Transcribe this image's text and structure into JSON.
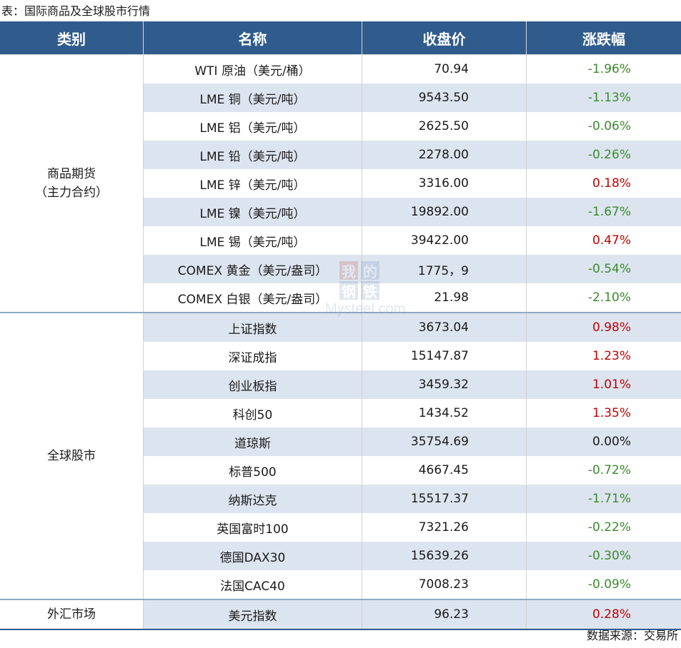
{
  "caption": "表：国际商品及全球股市行情",
  "headers": [
    "类别",
    "名称",
    "收盘价",
    "涨跌幅"
  ],
  "groups": [
    {
      "category_lines": [
        "商品期货",
        "（主力合约）"
      ],
      "rows": [
        {
          "name": "WTI 原油（美元/桶）",
          "price": "70.94",
          "change": "-1.96%",
          "dir": "down"
        },
        {
          "name": "LME 铜（美元/吨）",
          "price": "9543.50",
          "change": "-1.13%",
          "dir": "down"
        },
        {
          "name": "LME 铝（美元/吨）",
          "price": "2625.50",
          "change": "-0.06%",
          "dir": "down"
        },
        {
          "name": "LME 铅（美元/吨）",
          "price": "2278.00",
          "change": "-0.26%",
          "dir": "down"
        },
        {
          "name": "LME 锌（美元/吨）",
          "price": "3316.00",
          "change": "0.18%",
          "dir": "up"
        },
        {
          "name": "LME 镍（美元/吨）",
          "price": "19892.00",
          "change": "-1.67%",
          "dir": "down"
        },
        {
          "name": "LME 锡（美元/吨）",
          "price": "39422.00",
          "change": "0.47%",
          "dir": "up"
        },
        {
          "name": "COMEX 黄金（美元/盎司）",
          "price": "1775，9",
          "change": "-0.54%",
          "dir": "down"
        },
        {
          "name": "COMEX 白银（美元/盎司）",
          "price": "21.98",
          "change": "-2.10%",
          "dir": "down"
        }
      ]
    },
    {
      "category_lines": [
        "全球股市"
      ],
      "rows": [
        {
          "name": "上证指数",
          "price": "3673.04",
          "change": "0.98%",
          "dir": "up"
        },
        {
          "name": "深证成指",
          "price": "15147.87",
          "change": "1.23%",
          "dir": "up"
        },
        {
          "name": "创业板指",
          "price": "3459.32",
          "change": "1.01%",
          "dir": "up"
        },
        {
          "name": "科创50",
          "price": "1434.52",
          "change": "1.35%",
          "dir": "up"
        },
        {
          "name": "道琼斯",
          "price": "35754.69",
          "change": "0.00%",
          "dir": "flat"
        },
        {
          "name": "标普500",
          "price": "4667.45",
          "change": "-0.72%",
          "dir": "down"
        },
        {
          "name": "纳斯达克",
          "price": "15517.37",
          "change": "-1.71%",
          "dir": "down"
        },
        {
          "name": "英国富时100",
          "price": "7321.26",
          "change": "-0.22%",
          "dir": "down"
        },
        {
          "name": "德国DAX30",
          "price": "15639.26",
          "change": "-0.30%",
          "dir": "down"
        },
        {
          "name": "法国CAC40",
          "price": "7008.23",
          "change": "-0.09%",
          "dir": "down"
        }
      ]
    },
    {
      "category_lines": [
        "外汇市场"
      ],
      "rows": [
        {
          "name": "美元指数",
          "price": "96.23",
          "change": "0.28%",
          "dir": "up"
        }
      ]
    }
  ],
  "source": "数据来源：交易所",
  "watermark": {
    "chars": [
      "我",
      "的",
      "钢",
      "铁"
    ],
    "text": "Mysteel.com"
  },
  "colors": {
    "header_bg": "#2f5b8d",
    "alt_row_bg": "#dce4ef",
    "up": "#c00000",
    "down": "#3a8a2a"
  }
}
